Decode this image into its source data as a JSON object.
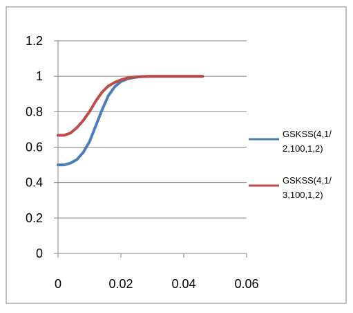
{
  "chart_data": {
    "type": "line",
    "title": "",
    "xlabel": "",
    "ylabel": "",
    "xlim": [
      0,
      0.06
    ],
    "ylim": [
      0,
      1.2
    ],
    "x_ticks": [
      "0",
      "0.02",
      "0.04",
      "0.06"
    ],
    "y_ticks": [
      "0",
      "0.2",
      "0.4",
      "0.6",
      "0.8",
      "1",
      "1.2"
    ],
    "grid": "horizontal",
    "legend_position": "right",
    "series": [
      {
        "name_lines": [
          "GSKSS(4,1/",
          "2,100,1,2)"
        ],
        "color": "#4a7ebb",
        "x": [
          0,
          0.002,
          0.004,
          0.006,
          0.008,
          0.01,
          0.012,
          0.014,
          0.016,
          0.018,
          0.02,
          0.022,
          0.024,
          0.026,
          0.028,
          0.03,
          0.032,
          0.034,
          0.036,
          0.038,
          0.04,
          0.042,
          0.044,
          0.046
        ],
        "y": [
          0.5,
          0.5,
          0.51,
          0.53,
          0.57,
          0.63,
          0.72,
          0.81,
          0.89,
          0.94,
          0.97,
          0.985,
          0.993,
          0.997,
          0.999,
          1.0,
          1.0,
          1.0,
          1.0,
          1.0,
          1.0,
          1.0,
          1.0,
          1.0
        ]
      },
      {
        "name_lines": [
          "GSKSS(4,1/",
          "3,100,1,2)"
        ],
        "color": "#be4b48",
        "x": [
          0,
          0.002,
          0.004,
          0.006,
          0.008,
          0.01,
          0.012,
          0.014,
          0.016,
          0.018,
          0.02,
          0.022,
          0.024,
          0.026,
          0.028,
          0.03,
          0.032,
          0.034,
          0.036,
          0.038,
          0.04,
          0.042,
          0.044,
          0.046
        ],
        "y": [
          0.667,
          0.667,
          0.68,
          0.71,
          0.75,
          0.8,
          0.86,
          0.91,
          0.945,
          0.965,
          0.98,
          0.99,
          0.995,
          0.998,
          0.999,
          1.0,
          1.0,
          1.0,
          1.0,
          1.0,
          1.0,
          1.0,
          1.0,
          1.0
        ]
      }
    ]
  }
}
